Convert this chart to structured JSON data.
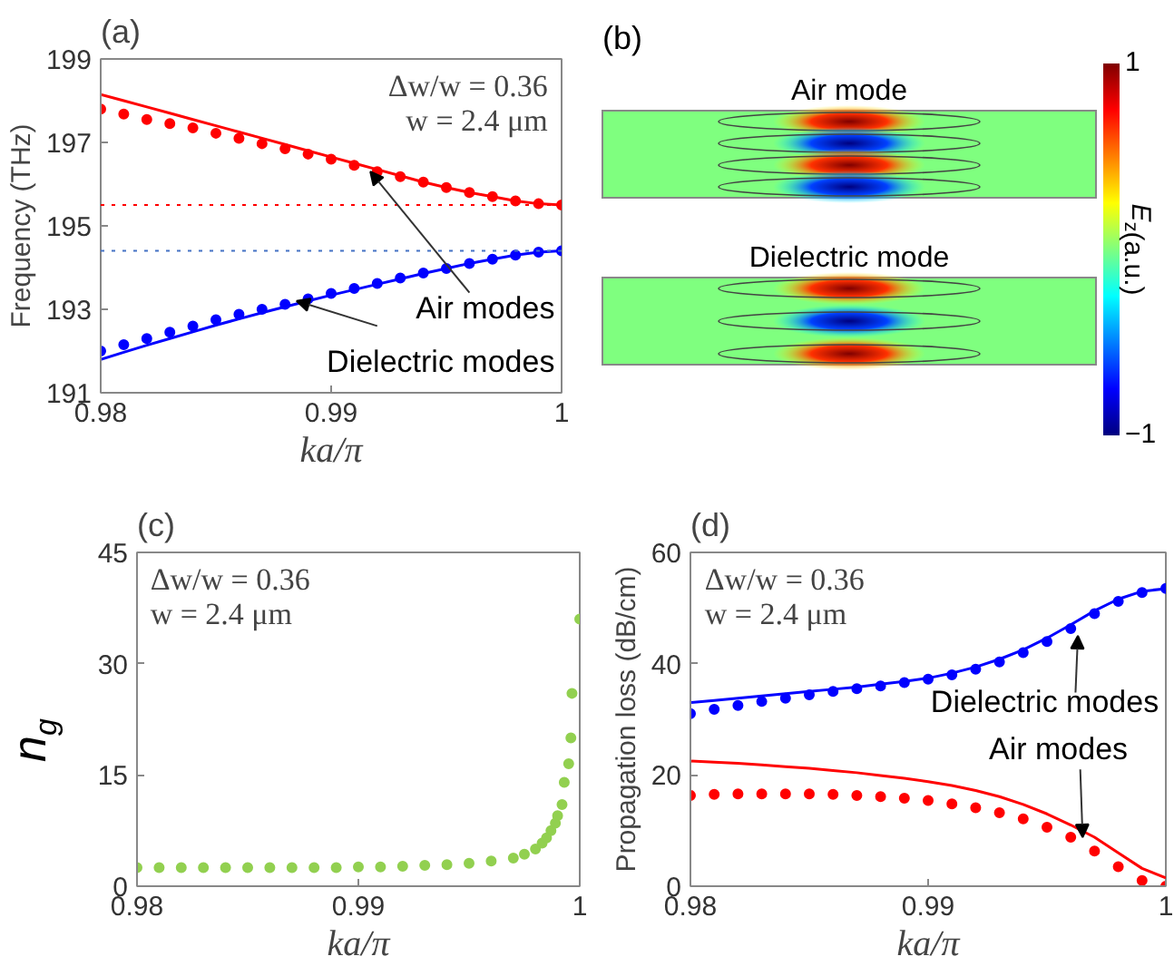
{
  "chart_data": [
    {
      "type": "line",
      "title": "(a)",
      "xlabel": "ka/π",
      "ylabel": "Frequency (THz)",
      "xlim": [
        0.98,
        1
      ],
      "xticks": [
        0.98,
        0.99,
        1
      ],
      "ylim": [
        191,
        199
      ],
      "yticks": [
        191,
        193,
        195,
        197,
        199
      ],
      "line_style": "solid",
      "grid": false,
      "x": [
        0.98,
        0.981,
        0.982,
        0.983,
        0.984,
        0.985,
        0.986,
        0.987,
        0.988,
        0.989,
        0.99,
        0.991,
        0.992,
        0.993,
        0.994,
        0.995,
        0.996,
        0.997,
        0.998,
        0.999,
        1.0
      ],
      "series": [
        {
          "type": "scatter",
          "marker": "circle",
          "color": "#ff0000",
          "values": [
            197.8,
            197.68,
            197.55,
            197.45,
            197.35,
            197.22,
            197.1,
            196.97,
            196.85,
            196.72,
            196.6,
            196.45,
            196.3,
            196.18,
            196.05,
            195.92,
            195.8,
            195.7,
            195.6,
            195.53,
            195.5
          ]
        },
        {
          "type": "line",
          "color": "#ff0000",
          "values": [
            198.15,
            198.0,
            197.85,
            197.7,
            197.55,
            197.4,
            197.25,
            197.1,
            196.95,
            196.8,
            196.65,
            196.5,
            196.35,
            196.2,
            196.05,
            195.92,
            195.8,
            195.7,
            195.6,
            195.53,
            195.5
          ]
        },
        {
          "type": "scatter",
          "marker": "circle",
          "color": "#0000ff",
          "values": [
            192.0,
            192.15,
            192.3,
            192.45,
            192.6,
            192.75,
            192.88,
            193.0,
            193.12,
            193.25,
            193.38,
            193.5,
            193.62,
            193.75,
            193.87,
            193.98,
            194.1,
            194.2,
            194.3,
            194.37,
            194.4
          ]
        },
        {
          "type": "line",
          "color": "#0000ff",
          "values": [
            191.8,
            191.97,
            192.14,
            192.3,
            192.46,
            192.62,
            192.77,
            192.92,
            193.06,
            193.2,
            193.34,
            193.47,
            193.6,
            193.73,
            193.86,
            193.98,
            194.1,
            194.2,
            194.3,
            194.37,
            194.4
          ]
        }
      ],
      "ref_lines": [
        {
          "axis": "y",
          "value": 195.5,
          "color": "#ff0000",
          "line_style": "dotted"
        },
        {
          "axis": "y",
          "value": 194.4,
          "color": "#4472c4",
          "line_style": "dotted"
        }
      ],
      "annotations": [
        "Δw/w = 0.36",
        "w = 2.4 μm",
        {
          "text": "Air modes",
          "x": 0.9917,
          "y": 196.3
        },
        {
          "text": "Dielectric modes",
          "x": 0.9885,
          "y": 193.2
        }
      ]
    },
    {
      "type": "other",
      "title": "(b)",
      "clabel": "E$_{z}$(a.u.)",
      "annotations": [
        "Air mode",
        "Dielectric mode",
        "1",
        "−1"
      ]
    },
    {
      "type": "scatter",
      "title": "(c)",
      "xlabel": "ka/π",
      "ylabel": "n$_{g}$",
      "xlim": [
        0.98,
        1
      ],
      "xticks": [
        0.98,
        0.99,
        1
      ],
      "ylim": [
        0,
        45
      ],
      "yticks": [
        0,
        15,
        30,
        45
      ],
      "grid": false,
      "series": [
        {
          "marker": "circle",
          "color": "#92d050",
          "x": [
            0.98,
            0.981,
            0.982,
            0.983,
            0.984,
            0.985,
            0.986,
            0.987,
            0.988,
            0.989,
            0.99,
            0.991,
            0.992,
            0.993,
            0.994,
            0.995,
            0.996,
            0.997,
            0.9975,
            0.998,
            0.9983,
            0.9985,
            0.9987,
            0.9989,
            0.999,
            0.9992,
            0.9993,
            0.9995,
            0.9996,
            0.99965,
            1.0
          ],
          "values": [
            2.5,
            2.5,
            2.5,
            2.5,
            2.5,
            2.5,
            2.5,
            2.5,
            2.5,
            2.5,
            2.6,
            2.6,
            2.7,
            2.8,
            2.9,
            3.1,
            3.4,
            3.8,
            4.3,
            5.0,
            5.8,
            6.5,
            7.5,
            8.5,
            9.5,
            11,
            14,
            16.5,
            20,
            26,
            36
          ]
        }
      ],
      "annotations": [
        "Δw/w = 0.36",
        "w = 2.4 μm"
      ]
    },
    {
      "type": "line",
      "title": "(d)",
      "xlabel": "ka/π",
      "ylabel": "Propagation loss (dB/cm)",
      "xlim": [
        0.98,
        1
      ],
      "xticks": [
        0.98,
        0.99,
        1
      ],
      "ylim": [
        0,
        60
      ],
      "yticks": [
        0,
        20,
        40,
        60
      ],
      "line_style": "solid",
      "grid": false,
      "x": [
        0.98,
        0.981,
        0.982,
        0.983,
        0.984,
        0.985,
        0.986,
        0.987,
        0.988,
        0.989,
        0.99,
        0.991,
        0.992,
        0.993,
        0.994,
        0.995,
        0.996,
        0.997,
        0.998,
        0.999,
        1.0
      ],
      "series": [
        {
          "type": "scatter",
          "marker": "circle",
          "color": "#0000ff",
          "values": [
            31,
            31.8,
            32.5,
            33.2,
            33.8,
            34.4,
            35,
            35.5,
            36,
            36.6,
            37.2,
            38,
            39,
            40.3,
            42,
            44,
            46.3,
            49,
            51.2,
            52.8,
            53.5
          ]
        },
        {
          "type": "line",
          "color": "#0000ff",
          "values": [
            33,
            33.4,
            33.8,
            34.2,
            34.6,
            35,
            35.4,
            35.8,
            36.3,
            36.8,
            37.4,
            38.3,
            39.4,
            40.8,
            42.5,
            44.6,
            47,
            49.5,
            51.6,
            53,
            53.5
          ]
        },
        {
          "type": "scatter",
          "marker": "circle",
          "color": "#ff0000",
          "values": [
            16.3,
            16.5,
            16.6,
            16.6,
            16.6,
            16.6,
            16.5,
            16.3,
            16.1,
            15.8,
            15.4,
            14.8,
            14.1,
            13.2,
            12.1,
            10.6,
            8.8,
            6.3,
            3.5,
            1,
            0
          ]
        },
        {
          "type": "line",
          "color": "#ff0000",
          "values": [
            22.5,
            22.3,
            22.1,
            21.8,
            21.5,
            21.2,
            20.8,
            20.4,
            19.9,
            19.4,
            18.8,
            18.1,
            17.2,
            16.1,
            14.7,
            13,
            11,
            8.8,
            6,
            3.2,
            1.5
          ]
        }
      ],
      "annotations": [
        "Δw/w = 0.36",
        "w = 2.4 μm",
        {
          "text": "Dielectric modes",
          "x": 0.9963,
          "y": 45
        },
        {
          "text": "Air modes",
          "x": 0.9965,
          "y": 8.8
        }
      ]
    }
  ]
}
